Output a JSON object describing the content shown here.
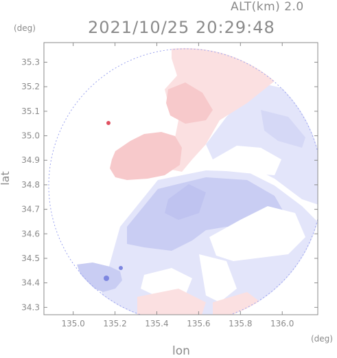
{
  "header": {
    "altitude": "ALT(km) 2.0",
    "timestamp": "2021/10/25 20:29:48"
  },
  "chart_data": {
    "type": "heatmap",
    "title": "2021/10/25 20:29:48",
    "subtitle": "ALT(km) 2.0",
    "xlabel": "lon",
    "ylabel": "lat",
    "xunit": "(deg)",
    "yunit": "(deg)",
    "xlim": [
      134.86,
      136.17
    ],
    "ylim": [
      34.27,
      35.38
    ],
    "xticks": [
      "135.0",
      "135.2",
      "135.4",
      "135.6",
      "135.8",
      "136.0"
    ],
    "yticks": [
      "34.3",
      "34.4",
      "34.5",
      "34.6",
      "34.7",
      "34.8",
      "34.9",
      "35.0",
      "35.1",
      "35.2",
      "35.3"
    ],
    "grid": false,
    "colors": {
      "positive": "#f7c9cb",
      "positive_light": "#fbe0e1",
      "negative": "#c9cdf3",
      "negative_light": "#e3e5fa",
      "negative_strong": "#7d86e0",
      "axis": "#8a8a8a"
    }
  }
}
